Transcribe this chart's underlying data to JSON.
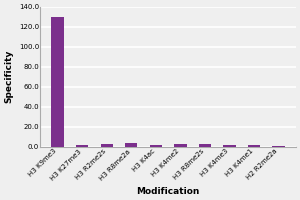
{
  "categories": [
    "H3 K9me3",
    "H3 K27me3",
    "H3 R2me2s",
    "H3 R8me2a",
    "H3 K4ac",
    "H3 K4me2",
    "H3 R8me2s",
    "H3 K4me3",
    "H3 K4me1",
    "H2 R2me2a"
  ],
  "values": [
    130,
    2,
    3,
    4,
    2,
    3,
    3,
    2,
    2,
    1
  ],
  "bar_color": "#7b2f8c",
  "xlabel": "Modification",
  "ylabel": "Specificity",
  "ylim": [
    0,
    140
  ],
  "yticks": [
    0.0,
    20.0,
    40.0,
    60.0,
    80.0,
    100.0,
    120.0,
    140.0
  ],
  "background_color": "#efefef",
  "plot_bg_color": "#efefef",
  "grid_color": "#ffffff",
  "spine_color": "#aaaaaa",
  "xlabel_fontsize": 6.5,
  "ylabel_fontsize": 6.5,
  "tick_fontsize": 5,
  "bar_width": 0.5
}
